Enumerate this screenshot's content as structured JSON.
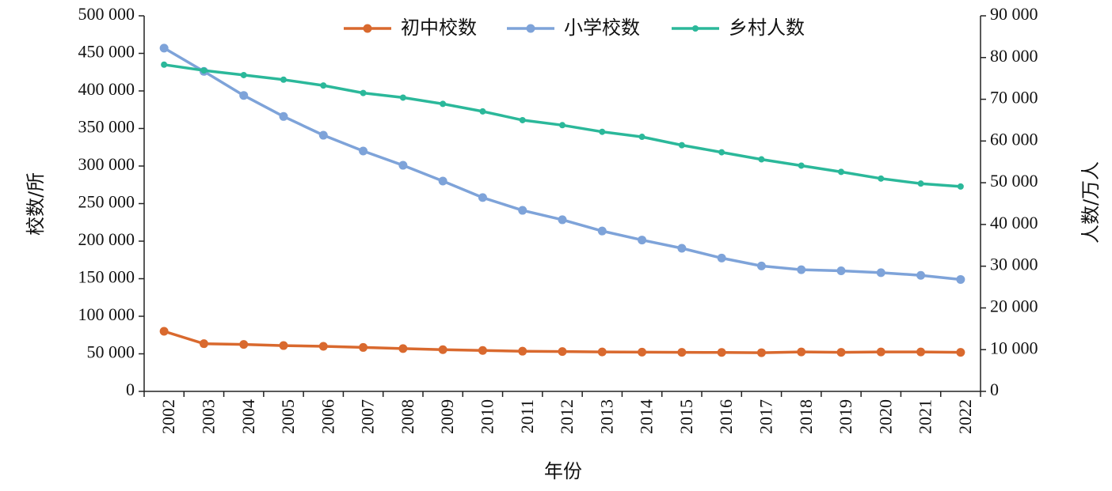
{
  "chart_data": {
    "type": "line",
    "xlabel": "年份",
    "ylabel_left": "校数/所",
    "ylabel_right": "人数/万人",
    "ylim_left": [
      0,
      500000
    ],
    "ylim_right": [
      0,
      90000
    ],
    "y_ticks_left": [
      "0",
      "50 000",
      "100 000",
      "150 000",
      "200 000",
      "250 000",
      "300 000",
      "350 000",
      "400 000",
      "450 000",
      "500 000"
    ],
    "y_ticks_right": [
      "0",
      "10 000",
      "20 000",
      "30 000",
      "40 000",
      "50 000",
      "60 000",
      "70 000",
      "80 000",
      "90 000"
    ],
    "categories": [
      "2002",
      "2003",
      "2004",
      "2005",
      "2006",
      "2007",
      "2008",
      "2009",
      "2010",
      "2011",
      "2012",
      "2013",
      "2014",
      "2015",
      "2016",
      "2017",
      "2018",
      "2019",
      "2020",
      "2021",
      "2022"
    ],
    "legend_position": "top",
    "series": [
      {
        "name": "初中校数",
        "axis": "left",
        "color": "#d9692e",
        "values": [
          80000,
          63500,
          62500,
          61000,
          60000,
          58500,
          57000,
          55500,
          54500,
          53500,
          53000,
          52500,
          52200,
          52000,
          51800,
          51500,
          52500,
          52000,
          52500,
          52500,
          52000
        ]
      },
      {
        "name": "小学校数",
        "axis": "left",
        "color": "#7ea3d9",
        "values": [
          457000,
          426000,
          394000,
          366000,
          341000,
          320000,
          301000,
          280000,
          258000,
          241000,
          228500,
          213500,
          201500,
          190500,
          177500,
          167000,
          162000,
          160500,
          158000,
          154500,
          149000
        ]
      },
      {
        "name": "乡村人数",
        "axis": "right",
        "color": "#2bb89a",
        "values": [
          78300,
          76900,
          75800,
          74700,
          73300,
          71500,
          70400,
          68900,
          67100,
          65000,
          63800,
          62200,
          61000,
          59000,
          57300,
          55600,
          54100,
          52600,
          51000,
          49800,
          49100
        ]
      }
    ]
  }
}
